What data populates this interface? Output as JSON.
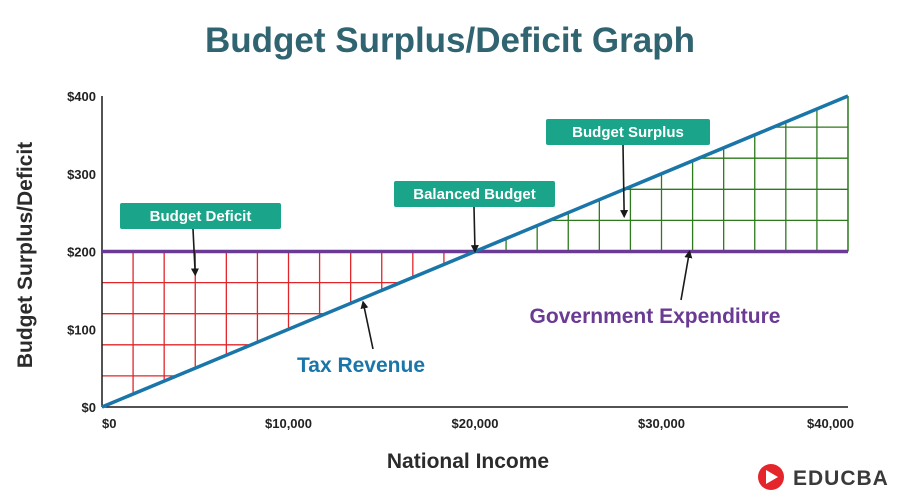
{
  "title": "Budget Surplus/Deficit Graph",
  "logo": {
    "text": "EDUCBA"
  },
  "colors": {
    "title": "#2f6470",
    "tax_revenue": "#1a76a9",
    "government_expenditure": "#6a3a94",
    "deficit_grid": "#e0262a",
    "surplus_grid": "#2c7a1c",
    "callout_bg": "#1aa58a",
    "logo_red": "#e4262c"
  },
  "chart_data": {
    "type": "line",
    "title": "Budget Surplus/Deficit Graph",
    "xlabel": "National Income",
    "ylabel": "Budget Surplus/Deficit",
    "xlim": [
      0,
      40000
    ],
    "ylim": [
      0,
      400
    ],
    "x_ticks": [
      {
        "value": 0,
        "label": "$0"
      },
      {
        "value": 10000,
        "label": "$10,000"
      },
      {
        "value": 20000,
        "label": "$20,000"
      },
      {
        "value": 30000,
        "label": "$30,000"
      },
      {
        "value": 40000,
        "label": "$40,000"
      }
    ],
    "y_ticks": [
      {
        "value": 0,
        "label": "$0"
      },
      {
        "value": 100,
        "label": "$100"
      },
      {
        "value": 200,
        "label": "$200"
      },
      {
        "value": 300,
        "label": "$300"
      },
      {
        "value": 400,
        "label": "$400"
      }
    ],
    "series": [
      {
        "name": "Tax Revenue",
        "x": [
          0,
          40000
        ],
        "y": [
          0,
          400
        ]
      },
      {
        "name": "Government Expenditure",
        "x": [
          0,
          40000
        ],
        "y": [
          200,
          200
        ]
      }
    ],
    "regions": [
      {
        "label": "Budget Deficit",
        "x_from": 0,
        "x_to": 20000,
        "fill": "grid"
      },
      {
        "label": "Budget Surplus",
        "x_from": 20000,
        "x_to": 40000,
        "fill": "grid"
      }
    ],
    "annotations": [
      {
        "text": "Budget Deficit",
        "arrow_to": {
          "x": 5000,
          "y": 170
        }
      },
      {
        "text": "Balanced Budget",
        "arrow_to": {
          "x": 20000,
          "y": 200
        }
      },
      {
        "text": "Budget Surplus",
        "arrow_to": {
          "x": 28000,
          "y": 245
        }
      },
      {
        "text": "Tax Revenue",
        "arrow_to": {
          "x": 14000,
          "y": 135
        }
      },
      {
        "text": "Government Expenditure",
        "arrow_to": {
          "x": 31500,
          "y": 200
        }
      }
    ],
    "grid": false
  }
}
